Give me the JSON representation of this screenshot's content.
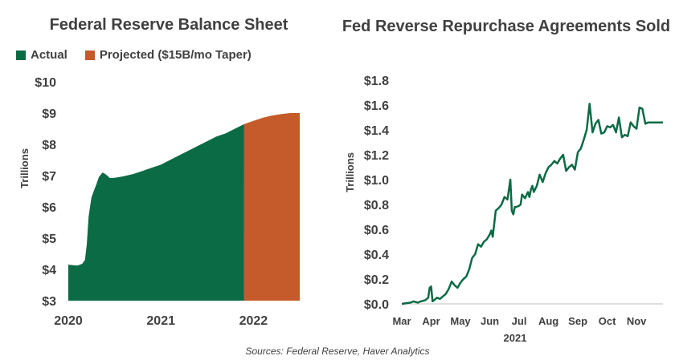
{
  "chart_data": [
    {
      "type": "area",
      "title": "Federal Reserve Balance Sheet",
      "ylabel": "Trillions",
      "ylim": [
        3,
        10
      ],
      "xlim": [
        2020.0,
        2022.5
      ],
      "y_ticks": [
        "$3",
        "$4",
        "$5",
        "$6",
        "$7",
        "$8",
        "$9",
        "$10"
      ],
      "x_ticks": [
        "2020",
        "2021",
        "2022"
      ],
      "grid": false,
      "legend": "top",
      "series": [
        {
          "name": "Actual",
          "color": "#0b6b45",
          "x": [
            2020.0,
            2020.1,
            2020.15,
            2020.18,
            2020.2,
            2020.22,
            2020.25,
            2020.28,
            2020.3,
            2020.33,
            2020.37,
            2020.4,
            2020.42,
            2020.45,
            2020.5,
            2020.55,
            2020.6,
            2020.7,
            2020.8,
            2020.9,
            2021.0,
            2021.1,
            2021.2,
            2021.3,
            2021.4,
            2021.5,
            2021.6,
            2021.7,
            2021.8,
            2021.9
          ],
          "values": [
            4.15,
            4.12,
            4.18,
            4.3,
            4.8,
            5.7,
            6.3,
            6.55,
            6.7,
            6.95,
            7.1,
            7.05,
            7.0,
            6.92,
            6.93,
            6.95,
            6.98,
            7.05,
            7.15,
            7.25,
            7.35,
            7.5,
            7.65,
            7.8,
            7.95,
            8.1,
            8.25,
            8.35,
            8.5,
            8.65
          ]
        },
        {
          "name": "Projected ($15B/mo Taper)",
          "color": "#c55a2a",
          "x": [
            2021.9,
            2022.0,
            2022.1,
            2022.2,
            2022.3,
            2022.4,
            2022.5
          ],
          "values": [
            8.65,
            8.75,
            8.85,
            8.92,
            8.97,
            9.0,
            9.0
          ]
        }
      ]
    },
    {
      "type": "line",
      "title": "Fed Reverse Repurchase Agreements Sold",
      "ylabel": "Trillions",
      "xlabel": "2021",
      "ylim": [
        0,
        1.8
      ],
      "y_ticks": [
        "$0.0",
        "$0.2",
        "$0.4",
        "$0.6",
        "$0.8",
        "$1.0",
        "$1.2",
        "$1.4",
        "$1.6",
        "$1.8"
      ],
      "x_ticks": [
        "Mar",
        "Apr",
        "May",
        "Jun",
        "Jul",
        "Aug",
        "Sep",
        "Oct",
        "Nov"
      ],
      "grid": false,
      "series": [
        {
          "color": "#0b6b45",
          "x": [
            0,
            0.3,
            0.4,
            0.55,
            0.65,
            0.8,
            0.9,
            0.95,
            1.0,
            1.05,
            1.1,
            1.15,
            1.2,
            1.3,
            1.4,
            1.5,
            1.6,
            1.7,
            1.8,
            1.9,
            2.0,
            2.1,
            2.2,
            2.3,
            2.4,
            2.5,
            2.6,
            2.7,
            2.8,
            2.9,
            3.0,
            3.05,
            3.1,
            3.2,
            3.3,
            3.4,
            3.5,
            3.6,
            3.7,
            3.75,
            3.8,
            3.85,
            3.9,
            4.0,
            4.05,
            4.1,
            4.2,
            4.3,
            4.35,
            4.4,
            4.45,
            4.5,
            4.6,
            4.7,
            4.8,
            4.9,
            5.0,
            5.1,
            5.2,
            5.3,
            5.4,
            5.5,
            5.6,
            5.7,
            5.8,
            5.9,
            6.0,
            6.1,
            6.2,
            6.3,
            6.4,
            6.5,
            6.6,
            6.7,
            6.8,
            6.9,
            7.0,
            7.1,
            7.2,
            7.3,
            7.4,
            7.5,
            7.6,
            7.7,
            7.8,
            7.9,
            8.0,
            8.1,
            8.2,
            8.3,
            8.4,
            8.5,
            8.6,
            8.7,
            8.8,
            8.9
          ],
          "values": [
            0.0,
            0.01,
            0.02,
            0.01,
            0.02,
            0.03,
            0.05,
            0.13,
            0.14,
            0.02,
            0.03,
            0.04,
            0.05,
            0.04,
            0.06,
            0.08,
            0.12,
            0.18,
            0.15,
            0.13,
            0.17,
            0.2,
            0.22,
            0.28,
            0.37,
            0.4,
            0.48,
            0.46,
            0.5,
            0.52,
            0.56,
            0.59,
            0.54,
            0.75,
            0.77,
            0.8,
            0.86,
            0.84,
            1.0,
            0.75,
            0.72,
            0.78,
            0.78,
            0.79,
            0.8,
            0.88,
            0.85,
            0.9,
            0.86,
            0.92,
            0.95,
            0.9,
            0.95,
            1.04,
            0.98,
            1.05,
            1.1,
            1.12,
            1.15,
            1.13,
            1.17,
            1.2,
            1.07,
            1.1,
            1.12,
            1.08,
            1.22,
            1.25,
            1.32,
            1.4,
            1.61,
            1.38,
            1.45,
            1.48,
            1.37,
            1.38,
            1.43,
            1.42,
            1.44,
            1.38,
            1.5,
            1.34,
            1.36,
            1.35,
            1.46,
            1.43,
            1.41,
            1.58,
            1.57,
            1.45,
            1.46,
            1.46,
            1.46,
            1.46,
            1.46,
            1.46
          ]
        }
      ]
    }
  ],
  "legend_labels": [
    "Actual",
    "Projected ($15B/mo Taper)"
  ],
  "source": "Sources: Federal Reserve, Haver Analytics"
}
